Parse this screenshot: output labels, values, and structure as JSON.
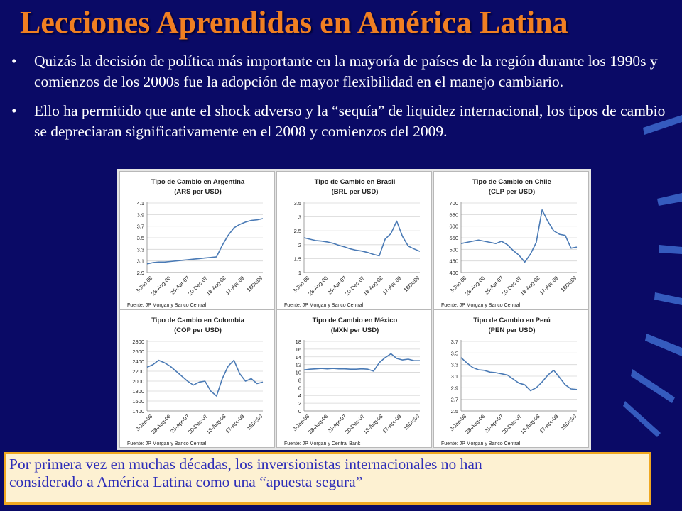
{
  "slide": {
    "title": "Lecciones Aprendidas en América Latina",
    "bullets": [
      "Quizás la decisión de política más importante en la mayoría de países de la región durante los 1990s y comienzos de los 2000s fue la adopción de mayor flexibilidad en el manejo cambiario.",
      "Ello ha permitido que ante el shock adverso y la “sequía” de liquidez internacional, los tipos de cambio se depreciaran significativamente en el 2008 y comienzos del 2009."
    ],
    "bullet_glyph": "•",
    "note_lines": [
      "Por primera vez en muchas décadas, los inversionistas internacionales no han",
      "considerado a América Latina como una “apuesta segura”"
    ]
  },
  "colors": {
    "background": "#0a0a66",
    "title": "#f07f22",
    "line": "#4a7ab5",
    "note_border": "#f0a820",
    "note_text": "#2e2eb8"
  },
  "chart_data": [
    {
      "type": "line",
      "title": "Tipo de Cambio en Argentina",
      "subtitle": "(ARS per USD)",
      "x_labels": [
        "3-Jan-06",
        "28-Aug-06",
        "25-Apr-07",
        "20-Dec-07",
        "18-Aug-08",
        "17-Apr-09",
        "16Dic09"
      ],
      "y_ticks": [
        2.9,
        3.1,
        3.3,
        3.5,
        3.7,
        3.9,
        4.1
      ],
      "ylim": [
        2.9,
        4.1
      ],
      "x": [
        0,
        0.05,
        0.1,
        0.15,
        0.2,
        0.25,
        0.3,
        0.35,
        0.4,
        0.45,
        0.5,
        0.55,
        0.6,
        0.65,
        0.7,
        0.75,
        0.8,
        0.85,
        0.9,
        0.95,
        1
      ],
      "values": [
        3.05,
        3.07,
        3.08,
        3.08,
        3.09,
        3.1,
        3.11,
        3.12,
        3.13,
        3.14,
        3.15,
        3.16,
        3.17,
        3.37,
        3.54,
        3.67,
        3.73,
        3.77,
        3.8,
        3.81,
        3.83
      ],
      "source": "Fuente: JP Morgan y Banco Central"
    },
    {
      "type": "line",
      "title": "Tipo de Cambio en Brasil",
      "subtitle": "(BRL per USD)",
      "x_labels": [
        "3-Jan-06",
        "28-Aug-06",
        "25-Apr-07",
        "20-Dec-07",
        "18-Aug-08",
        "17-Apr-09",
        "16Dic09"
      ],
      "y_ticks": [
        1,
        1.5,
        2,
        2.5,
        3,
        3.5
      ],
      "ylim": [
        1,
        3.5
      ],
      "x": [
        0,
        0.05,
        0.1,
        0.15,
        0.2,
        0.25,
        0.3,
        0.35,
        0.4,
        0.45,
        0.5,
        0.55,
        0.6,
        0.65,
        0.7,
        0.75,
        0.8,
        0.85,
        0.9,
        0.95,
        1
      ],
      "values": [
        2.25,
        2.2,
        2.15,
        2.13,
        2.1,
        2.05,
        1.98,
        1.92,
        1.85,
        1.8,
        1.77,
        1.72,
        1.65,
        1.6,
        2.2,
        2.4,
        2.85,
        2.3,
        1.95,
        1.85,
        1.76
      ],
      "source": "Fuente: JP Morgan y Banco Central"
    },
    {
      "type": "line",
      "title": "Tipo de Cambio en Chile",
      "subtitle": "(CLP per USD)",
      "x_labels": [
        "3-Jan-06",
        "28-Aug-06",
        "25-Apr-07",
        "20-Dec-07",
        "18-Aug-08",
        "17-Apr-09",
        "16Dic09"
      ],
      "y_ticks": [
        400,
        450,
        500,
        550,
        600,
        650,
        700
      ],
      "ylim": [
        400,
        700
      ],
      "x": [
        0,
        0.05,
        0.1,
        0.15,
        0.2,
        0.25,
        0.3,
        0.35,
        0.4,
        0.45,
        0.5,
        0.55,
        0.6,
        0.65,
        0.7,
        0.75,
        0.8,
        0.85,
        0.9,
        0.95,
        1
      ],
      "values": [
        525,
        530,
        535,
        540,
        535,
        530,
        525,
        535,
        520,
        495,
        475,
        445,
        480,
        530,
        670,
        620,
        580,
        565,
        560,
        505,
        510
      ],
      "source": "Fuente: JP Morgan y Banco Central"
    },
    {
      "type": "line",
      "title": "Tipo de Cambio en Colombia",
      "subtitle": "(COP per USD)",
      "x_labels": [
        "3-Jan-06",
        "28-Aug-06",
        "25-Apr-07",
        "20-Dec-07",
        "18-Aug-08",
        "17-Apr-09",
        "16Dic09"
      ],
      "y_ticks": [
        1400,
        1600,
        1800,
        2000,
        2200,
        2400,
        2600,
        2800
      ],
      "ylim": [
        1400,
        2800
      ],
      "x": [
        0,
        0.05,
        0.1,
        0.15,
        0.2,
        0.25,
        0.3,
        0.35,
        0.4,
        0.45,
        0.5,
        0.55,
        0.6,
        0.65,
        0.7,
        0.75,
        0.8,
        0.85,
        0.9,
        0.95,
        1
      ],
      "values": [
        2280,
        2330,
        2420,
        2370,
        2300,
        2200,
        2100,
        2000,
        1920,
        1980,
        2000,
        1800,
        1700,
        2050,
        2300,
        2420,
        2150,
        2000,
        2050,
        1950,
        1980
      ],
      "source": "Fuente: JP Morgan y Banco Central"
    },
    {
      "type": "line",
      "title": "Tipo de Cambio en México",
      "subtitle": "(MXN per USD)",
      "x_labels": [
        "3-Jan-06",
        "28-Aug-06",
        "25-Apr-07",
        "20-Dec-07",
        "18-Aug-08",
        "17-Apr-09",
        "16Dic09"
      ],
      "y_ticks": [
        0,
        2,
        4,
        6,
        8,
        10,
        12,
        14,
        16,
        18
      ],
      "ylim": [
        0,
        18
      ],
      "x": [
        0,
        0.05,
        0.1,
        0.15,
        0.2,
        0.25,
        0.3,
        0.35,
        0.4,
        0.45,
        0.5,
        0.55,
        0.6,
        0.65,
        0.7,
        0.75,
        0.8,
        0.85,
        0.9,
        0.95,
        1
      ],
      "values": [
        10.6,
        10.8,
        10.9,
        11.0,
        10.9,
        11.0,
        10.9,
        10.9,
        10.8,
        10.8,
        10.9,
        10.8,
        10.3,
        12.5,
        13.8,
        14.8,
        13.6,
        13.2,
        13.4,
        13.0,
        13.0
      ],
      "source": "Fuente: JP Morgan y Central Bank"
    },
    {
      "type": "line",
      "title": "Tipo de Cambio en Perú",
      "subtitle": "(PEN per USD)",
      "x_labels": [
        "3-Jan-06",
        "28-Aug-06",
        "25-Apr-07",
        "20-Dec-07",
        "18-Aug-08",
        "17-Apr-09",
        "16Dic09"
      ],
      "y_ticks": [
        2.5,
        2.7,
        2.9,
        3.1,
        3.3,
        3.5,
        3.7
      ],
      "ylim": [
        2.5,
        3.7
      ],
      "x": [
        0,
        0.05,
        0.1,
        0.15,
        0.2,
        0.25,
        0.3,
        0.35,
        0.4,
        0.45,
        0.5,
        0.55,
        0.6,
        0.65,
        0.7,
        0.75,
        0.8,
        0.85,
        0.9,
        0.95,
        1
      ],
      "values": [
        3.42,
        3.33,
        3.25,
        3.21,
        3.2,
        3.17,
        3.16,
        3.14,
        3.12,
        3.05,
        2.98,
        2.95,
        2.85,
        2.9,
        3.0,
        3.12,
        3.2,
        3.08,
        2.95,
        2.88,
        2.87
      ],
      "source": "Fuente: JP Morgan  y Banco Central"
    }
  ]
}
